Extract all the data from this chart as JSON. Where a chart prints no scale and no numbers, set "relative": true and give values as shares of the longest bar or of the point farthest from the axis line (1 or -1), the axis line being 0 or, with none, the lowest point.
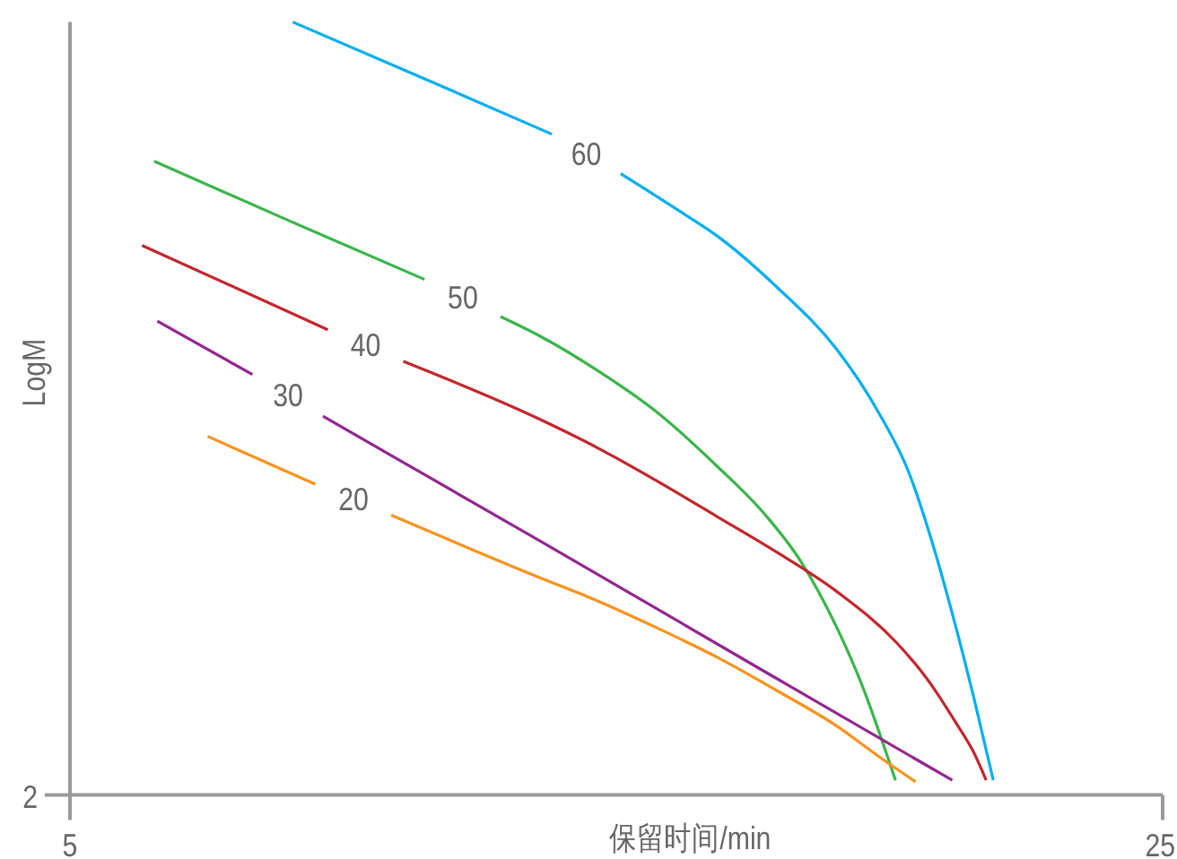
{
  "chart_data": {
    "type": "line",
    "xlabel": "保留时间/min",
    "ylabel": "LogM",
    "relative": true,
    "xlim": [
      5,
      25
    ],
    "xticks": [
      5,
      25
    ],
    "annotations": [
      "2"
    ],
    "marker": "none",
    "line_style": "solid",
    "series": [
      {
        "name": "60",
        "color": "#00aeef",
        "x": [
          9.08,
          11.38,
          13.82,
          14.45,
          15.08,
          16.19,
          16.85,
          17.94,
          19.04,
          19.8,
          20.35,
          20.79,
          21.22,
          21.55,
          21.9
        ],
        "values": [
          1.0,
          0.93,
          0.855,
          null,
          0.804,
          0.754,
          0.723,
          0.657,
          0.576,
          0.495,
          0.418,
          0.325,
          0.216,
          0.124,
          0.019
        ]
      },
      {
        "name": "50",
        "color": "#39b54a",
        "x": [
          6.54,
          9.01,
          11.49,
          12.19,
          12.88,
          13.57,
          14.66,
          15.75,
          16.85,
          17.72,
          18.38,
          19.04,
          19.47,
          20.11
        ],
        "values": [
          0.82,
          0.743,
          0.667,
          null,
          0.619,
          0.595,
          0.549,
          0.495,
          0.425,
          0.363,
          0.302,
          0.216,
          0.147,
          0.019
        ]
      },
      {
        "name": "40",
        "color": "#c1272d",
        "x": [
          6.32,
          9.72,
          10.41,
          11.1,
          13.57,
          14.66,
          15.75,
          16.85,
          17.94,
          19.04,
          20.13,
          20.68,
          21.22,
          21.55,
          21.77
        ],
        "values": [
          0.711,
          0.602,
          null,
          0.561,
          0.487,
          0.449,
          0.406,
          0.36,
          0.314,
          0.263,
          0.197,
          0.151,
          0.093,
          0.054,
          0.019
        ]
      },
      {
        "name": "30",
        "color": "#92278f",
        "x": [
          6.6,
          8.34,
          8.99,
          9.63,
          13.57,
          17.83,
          21.15
        ],
        "values": [
          0.613,
          0.544,
          null,
          0.49,
          0.33,
          0.155,
          0.019
        ]
      },
      {
        "name": "20",
        "color": "#f7931e",
        "x": [
          7.52,
          9.49,
          10.19,
          10.88,
          13.57,
          14.66,
          15.75,
          16.85,
          17.94,
          19.04,
          19.8,
          20.48
        ],
        "values": [
          0.464,
          0.402,
          null,
          0.362,
          0.282,
          0.251,
          0.216,
          0.178,
          0.135,
          0.089,
          0.05,
          0.017
        ]
      }
    ]
  }
}
